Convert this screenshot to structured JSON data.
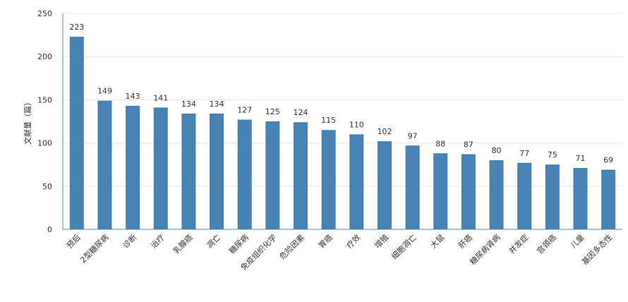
{
  "chart_data": {
    "type": "bar",
    "title": "",
    "xlabel": "",
    "ylabel": "文献量（篇）",
    "ylim": [
      0,
      250
    ],
    "yticks": [
      0,
      50,
      100,
      150,
      200,
      250
    ],
    "grid": true,
    "categories": [
      "预后",
      "2型糖尿病",
      "诊断",
      "治疗",
      "乳腺癌",
      "凋亡",
      "糖尿病",
      "免疫组织化学",
      "危险因素",
      "胃癌",
      "疗效",
      "增殖",
      "细胞凋亡",
      "大鼠",
      "肝癌",
      "糖尿病肾病",
      "并发症",
      "宫颈癌",
      "儿童",
      "基因多态性"
    ],
    "values": [
      223,
      149,
      143,
      141,
      134,
      134,
      127,
      125,
      124,
      115,
      110,
      102,
      97,
      88,
      87,
      80,
      77,
      75,
      71,
      69
    ],
    "colors": {
      "bar": "#4682b4",
      "axis": "#4a90b8",
      "grid": "#e6e6e6",
      "text": "#333333"
    }
  }
}
